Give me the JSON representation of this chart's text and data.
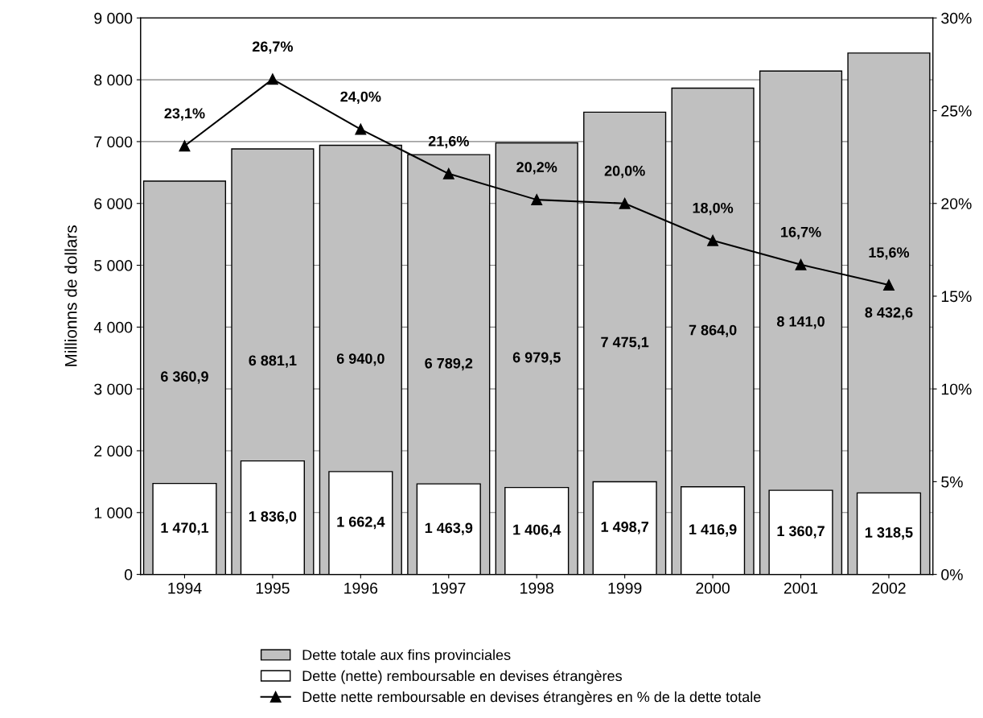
{
  "chart_data": {
    "type": "bar",
    "ylabel": "Millionns de dollars",
    "categories": [
      "1994",
      "1995",
      "1996",
      "1997",
      "1998",
      "1999",
      "2000",
      "2001",
      "2002"
    ],
    "series": [
      {
        "name": "Dette totale aux fins provinciales",
        "color": "#c0c0c0",
        "values": [
          6360.9,
          6881.1,
          6940.0,
          6789.2,
          6979.5,
          7475.1,
          7864.0,
          8141.0,
          8432.6
        ],
        "value_labels": [
          "6 360,9",
          "6 881,1",
          "6 940,0",
          "6 789,2",
          "6 979,5",
          "7 475,1",
          "7 864,0",
          "8 141,0",
          "8 432,6"
        ]
      },
      {
        "name": "Dette (nette) remboursable en devises étrangères",
        "color": "#ffffff",
        "values": [
          1470.1,
          1836.0,
          1662.4,
          1463.9,
          1406.4,
          1498.7,
          1416.9,
          1360.7,
          1318.5
        ],
        "value_labels": [
          "1 470,1",
          "1 836,0",
          "1 662,4",
          "1 463,9",
          "1 406,4",
          "1 498,7",
          "1 416,9",
          "1 360,7",
          "1 318,5"
        ]
      },
      {
        "name": "Dette nette remboursable en devises étrangères en % de la dette totale",
        "type": "line",
        "axis": "y2",
        "color": "#000000",
        "marker": "triangle",
        "values": [
          23.1,
          26.7,
          24.0,
          21.6,
          20.2,
          20.0,
          18.0,
          16.7,
          15.6
        ],
        "value_labels": [
          "23,1%",
          "26,7%",
          "24,0%",
          "21,6%",
          "20,2%",
          "20,0%",
          "18,0%",
          "16,7%",
          "15,6%"
        ]
      }
    ],
    "ylim": [
      0,
      9000
    ],
    "yticks": [
      {
        "value": 0,
        "label": "0"
      },
      {
        "value": 1000,
        "label": "1 000"
      },
      {
        "value": 2000,
        "label": "2 000"
      },
      {
        "value": 3000,
        "label": "3 000"
      },
      {
        "value": 4000,
        "label": "4 000"
      },
      {
        "value": 5000,
        "label": "5 000"
      },
      {
        "value": 6000,
        "label": "6 000"
      },
      {
        "value": 7000,
        "label": "7 000"
      },
      {
        "value": 8000,
        "label": "8 000"
      },
      {
        "value": 9000,
        "label": "9 000"
      }
    ],
    "y2lim": [
      0,
      30
    ],
    "y2ticks": [
      {
        "value": 0,
        "label": "0%"
      },
      {
        "value": 5,
        "label": "5%"
      },
      {
        "value": 10,
        "label": "10%"
      },
      {
        "value": 15,
        "label": "15%"
      },
      {
        "value": 20,
        "label": "20%"
      },
      {
        "value": 25,
        "label": "25%"
      },
      {
        "value": 30,
        "label": "30%"
      }
    ],
    "grid": "y",
    "legend": "bottom"
  }
}
